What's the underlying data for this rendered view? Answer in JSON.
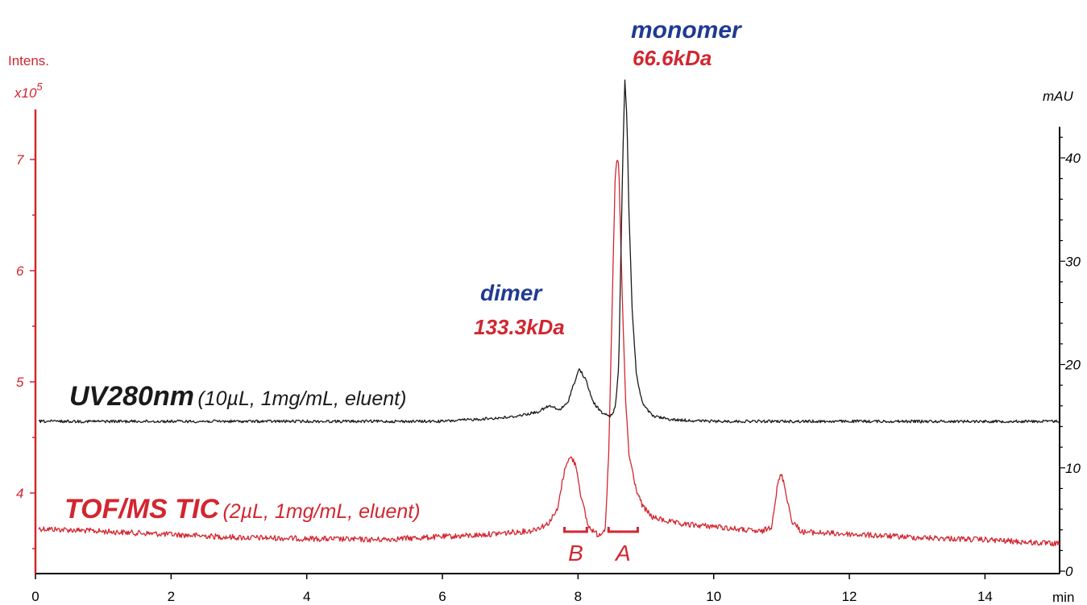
{
  "colors": {
    "ms": "#d22630",
    "uv": "#1a1a1a",
    "peak_label": "#1f3a93",
    "axis": "#000000"
  },
  "chart_data": {
    "type": "line",
    "xlabel": "min",
    "xlim": [
      0,
      15.1
    ],
    "x_ticks": [
      0,
      2,
      4,
      6,
      8,
      10,
      12,
      14
    ],
    "left_axis": {
      "label": "Intens.",
      "multiplier_text": "x10",
      "multiplier_exp": "5",
      "range": [
        3.3,
        7.45
      ],
      "ticks": [
        4,
        5,
        6,
        7
      ]
    },
    "right_axis": {
      "label": "mAU",
      "range": [
        0,
        43
      ],
      "ticks": [
        0,
        10,
        20,
        30,
        40
      ]
    },
    "series": [
      {
        "name": "UV280nm",
        "axis": "right",
        "annotation_bold": "UV280nm",
        "annotation_italic": "(10µL, 1mg/mL, eluent)",
        "points": [
          [
            0.05,
            14.5
          ],
          [
            6.0,
            14.5
          ],
          [
            7.0,
            14.9
          ],
          [
            7.4,
            15.4
          ],
          [
            7.58,
            16.0
          ],
          [
            7.72,
            15.6
          ],
          [
            7.84,
            16.2
          ],
          [
            7.92,
            17.8
          ],
          [
            8.02,
            19.6
          ],
          [
            8.12,
            18.4
          ],
          [
            8.22,
            16.4
          ],
          [
            8.35,
            15.3
          ],
          [
            8.48,
            15.0
          ],
          [
            8.55,
            15.8
          ],
          [
            8.6,
            20.0
          ],
          [
            8.63,
            30.0
          ],
          [
            8.66,
            40.0
          ],
          [
            8.69,
            47.5
          ],
          [
            8.72,
            44.0
          ],
          [
            8.75,
            35.0
          ],
          [
            8.8,
            25.0
          ],
          [
            8.86,
            19.0
          ],
          [
            8.95,
            16.2
          ],
          [
            9.1,
            15.0
          ],
          [
            9.4,
            14.65
          ],
          [
            10.0,
            14.5
          ],
          [
            15.1,
            14.5
          ]
        ]
      },
      {
        "name": "TOF/MS TIC",
        "axis": "left",
        "annotation_bold": "TOF/MS TIC",
        "annotation_italic": "(2µL, 1mg/mL, eluent)",
        "points": [
          [
            0.05,
            3.68
          ],
          [
            3.0,
            3.6
          ],
          [
            5.0,
            3.58
          ],
          [
            6.5,
            3.62
          ],
          [
            7.3,
            3.66
          ],
          [
            7.55,
            3.72
          ],
          [
            7.7,
            3.85
          ],
          [
            7.76,
            4.08
          ],
          [
            7.83,
            4.28
          ],
          [
            7.9,
            4.32
          ],
          [
            7.97,
            4.25
          ],
          [
            8.05,
            3.95
          ],
          [
            8.15,
            3.7
          ],
          [
            8.3,
            3.62
          ],
          [
            8.4,
            3.68
          ],
          [
            8.45,
            4.3
          ],
          [
            8.5,
            5.6
          ],
          [
            8.55,
            6.9
          ],
          [
            8.58,
            7.0
          ],
          [
            8.6,
            6.95
          ],
          [
            8.65,
            5.8
          ],
          [
            8.7,
            4.85
          ],
          [
            8.75,
            4.35
          ],
          [
            8.85,
            4.05
          ],
          [
            8.95,
            3.88
          ],
          [
            9.1,
            3.78
          ],
          [
            9.5,
            3.72
          ],
          [
            10.0,
            3.7
          ],
          [
            10.7,
            3.65
          ],
          [
            10.85,
            3.7
          ],
          [
            10.95,
            4.1
          ],
          [
            11.0,
            4.17
          ],
          [
            11.05,
            4.05
          ],
          [
            11.15,
            3.75
          ],
          [
            11.3,
            3.65
          ],
          [
            12.0,
            3.63
          ],
          [
            13.0,
            3.6
          ],
          [
            14.0,
            3.58
          ],
          [
            15.1,
            3.54
          ]
        ]
      }
    ],
    "annotations": [
      {
        "line1": "dimer",
        "line2": "133.3kDa",
        "x": 8.0
      },
      {
        "line1": "monomer",
        "line2": "66.6kDa",
        "x": 8.7
      }
    ],
    "brackets": [
      {
        "label": "B",
        "x1": 7.8,
        "x2": 8.13
      },
      {
        "label": "A",
        "x1": 8.45,
        "x2": 8.88
      }
    ]
  }
}
